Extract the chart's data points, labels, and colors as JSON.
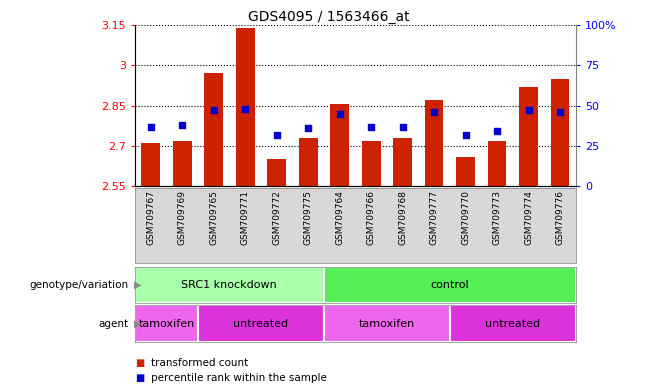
{
  "title": "GDS4095 / 1563466_at",
  "samples": [
    "GSM709767",
    "GSM709769",
    "GSM709765",
    "GSM709771",
    "GSM709772",
    "GSM709775",
    "GSM709764",
    "GSM709766",
    "GSM709768",
    "GSM709777",
    "GSM709770",
    "GSM709773",
    "GSM709774",
    "GSM709776"
  ],
  "bar_values": [
    2.71,
    2.72,
    2.97,
    3.14,
    2.65,
    2.73,
    2.855,
    2.72,
    2.73,
    2.87,
    2.66,
    2.72,
    2.92,
    2.95
  ],
  "percentile_values": [
    37,
    38,
    47,
    48,
    32,
    36,
    45,
    37,
    37,
    46,
    32,
    34,
    47,
    46
  ],
  "ymin": 2.55,
  "ymax": 3.15,
  "yticks": [
    2.55,
    2.7,
    2.85,
    3.0,
    3.15
  ],
  "ytick_labels": [
    "2.55",
    "2.7",
    "2.85",
    "3",
    "3.15"
  ],
  "right_yticks": [
    0,
    25,
    50,
    75,
    100
  ],
  "right_ytick_labels": [
    "0",
    "25",
    "50",
    "75",
    "100%"
  ],
  "bar_color": "#cc2200",
  "dot_color": "#0000cc",
  "bar_bottom": 2.55,
  "grid_lines": [
    2.7,
    2.85,
    3.0
  ],
  "genotype_groups": [
    {
      "label": "SRC1 knockdown",
      "start": 0,
      "end": 6,
      "color": "#aaffaa"
    },
    {
      "label": "control",
      "start": 6,
      "end": 14,
      "color": "#55ee55"
    }
  ],
  "agent_groups": [
    {
      "label": "tamoxifen",
      "start": 0,
      "end": 2,
      "color": "#ee66ee"
    },
    {
      "label": "untreated",
      "start": 2,
      "end": 6,
      "color": "#dd33dd"
    },
    {
      "label": "tamoxifen",
      "start": 6,
      "end": 10,
      "color": "#ee66ee"
    },
    {
      "label": "untreated",
      "start": 10,
      "end": 14,
      "color": "#dd33dd"
    }
  ],
  "legend_items": [
    {
      "label": "transformed count",
      "color": "#cc2200"
    },
    {
      "label": "percentile rank within the sample",
      "color": "#0000cc"
    }
  ],
  "label_genotype": "genotype/variation",
  "label_agent": "agent"
}
